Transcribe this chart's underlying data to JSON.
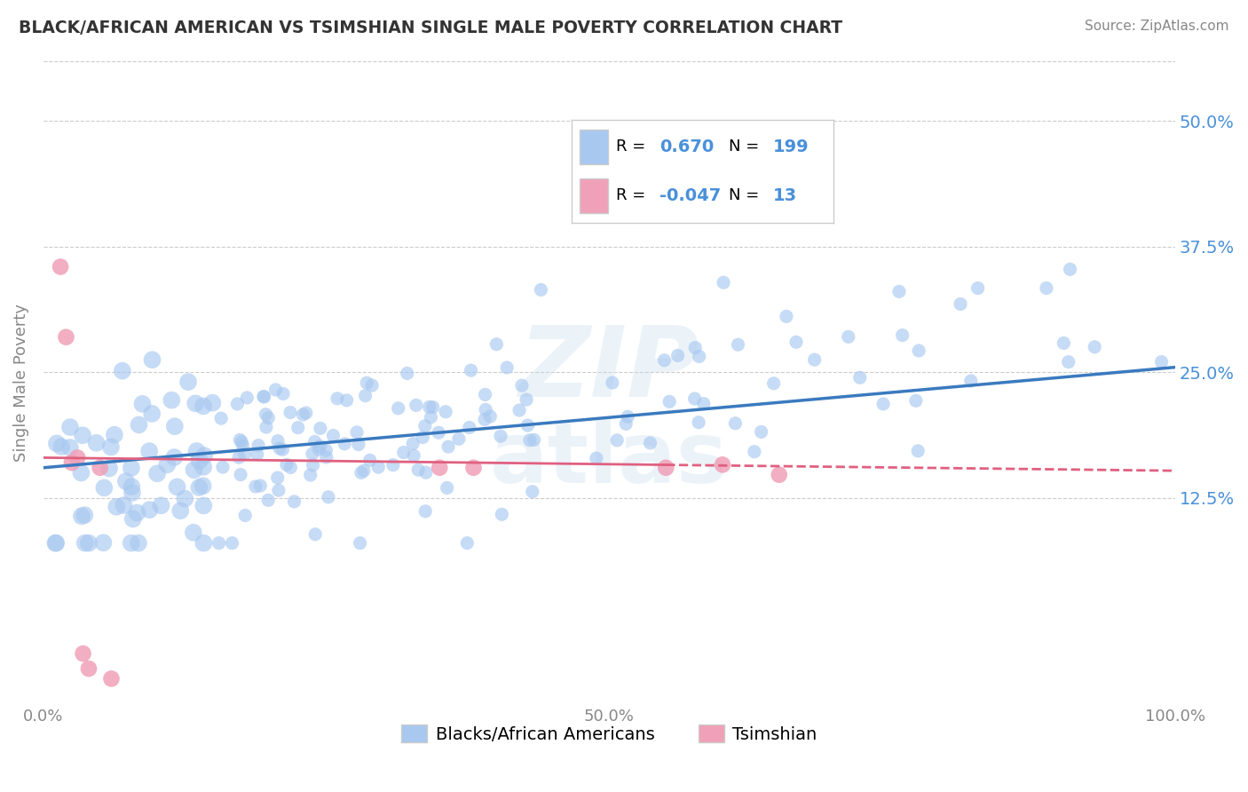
{
  "title": "BLACK/AFRICAN AMERICAN VS TSIMSHIAN SINGLE MALE POVERTY CORRELATION CHART",
  "source": "Source: ZipAtlas.com",
  "xlabel": "",
  "ylabel": "Single Male Poverty",
  "watermark": "ZIPatlas",
  "xlim": [
    0.0,
    1.0
  ],
  "ylim": [
    -0.08,
    0.56
  ],
  "xticks": [
    0.0,
    0.25,
    0.5,
    0.75,
    1.0
  ],
  "xticklabels": [
    "0.0%",
    "",
    "50.0%",
    "",
    "100.0%"
  ],
  "yticks": [
    0.125,
    0.25,
    0.375,
    0.5
  ],
  "yticklabels": [
    "12.5%",
    "25.0%",
    "37.5%",
    "50.0%"
  ],
  "blue_line_color": "#3a7abf",
  "pink_line_color": "#e06080",
  "blue_scatter_color": "#a8c8f0",
  "pink_scatter_color": "#f0a0b8",
  "seed": 42,
  "background_color": "#ffffff",
  "grid_color": "#cccccc",
  "title_color": "#333333",
  "tick_color": "#888888",
  "blue_trend_start_y": 0.155,
  "blue_trend_end_y": 0.255,
  "pink_trend_start_y": 0.165,
  "pink_trend_end_y": 0.152
}
